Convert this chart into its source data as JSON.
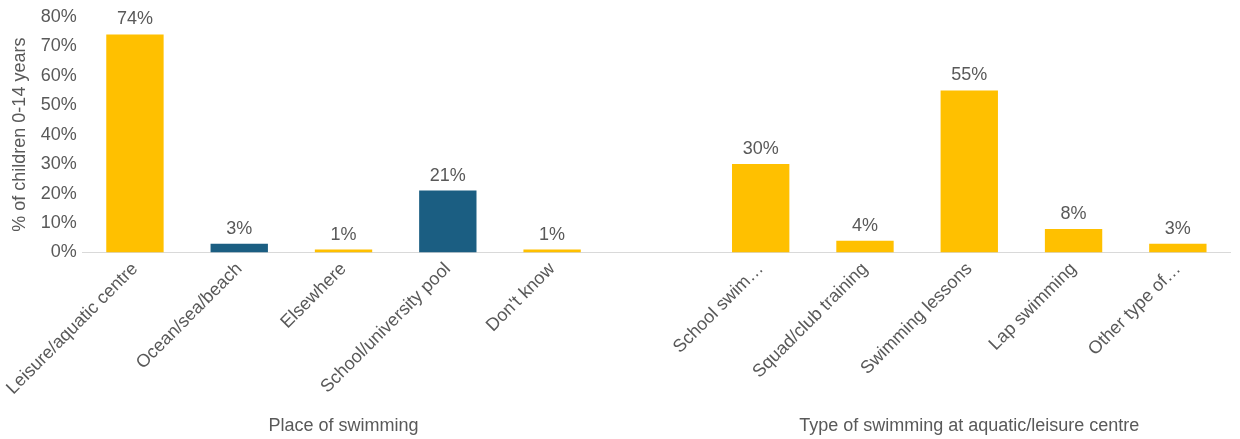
{
  "chart_data": {
    "type": "bar",
    "ylabel": "% of children 0-14 years",
    "categories": [
      "Leisure/aquatic centre",
      "Ocean/sea/beach",
      "Elsewhere",
      "School/university pool",
      "Don't know",
      null,
      "School swim…",
      "Squad/club training",
      "Swimming lessons",
      "Lap swimming",
      "Other type of…"
    ],
    "values": [
      74,
      3,
      1,
      21,
      1,
      null,
      30,
      4,
      55,
      8,
      3
    ],
    "value_labels": [
      "74%",
      "3%",
      "1%",
      "21%",
      "1%",
      null,
      "30%",
      "4%",
      "55%",
      "8%",
      "3%"
    ],
    "colors": [
      "#ffc000",
      "#1b5e82",
      "#ffc000",
      "#1b5e82",
      "#ffc000",
      "#ffc000",
      "#ffc000",
      "#ffc000",
      "#ffc000",
      "#ffc000",
      "#ffc000"
    ],
    "ylim": [
      0,
      80
    ],
    "yticks": [
      {
        "value": 0,
        "label": "0%"
      },
      {
        "value": 10,
        "label": "10%"
      },
      {
        "value": 20,
        "label": "20%"
      },
      {
        "value": 30,
        "label": "30%"
      },
      {
        "value": 40,
        "label": "40%"
      },
      {
        "value": 50,
        "label": "50%"
      },
      {
        "value": 60,
        "label": "60%"
      },
      {
        "value": 70,
        "label": "70%"
      },
      {
        "value": 80,
        "label": "80%"
      }
    ],
    "grid": false,
    "legend": false,
    "annotations": [
      "Place of swimming",
      "Type of swimming at aquatic/leisure centre"
    ]
  }
}
